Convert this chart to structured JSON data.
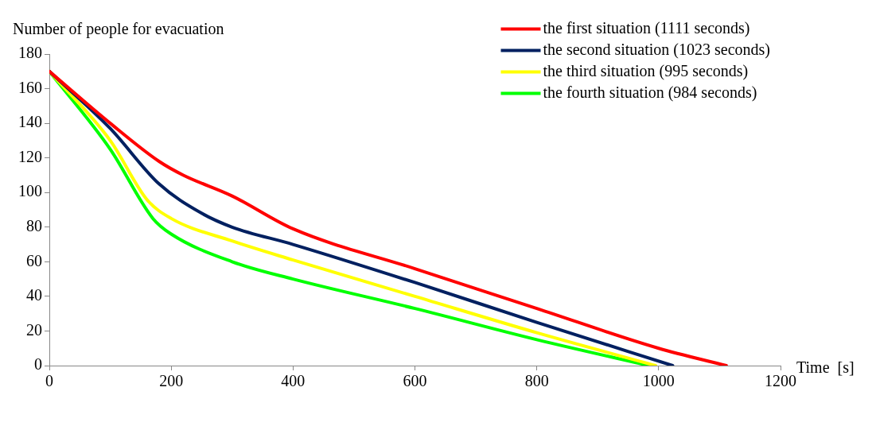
{
  "chart_data": {
    "type": "line",
    "ylabel": "Number of people for evacuation",
    "xlabel": "Time  [s]",
    "xlim": [
      0,
      1200
    ],
    "xticks": [
      0,
      200,
      400,
      600,
      800,
      1000,
      1200
    ],
    "ylim": [
      0,
      180
    ],
    "yticks": [
      0,
      20,
      40,
      60,
      80,
      100,
      120,
      140,
      160,
      180
    ],
    "grid": false,
    "legend": "top right",
    "marker": "none",
    "line_style": "solid",
    "series": [
      {
        "name": "the first situation (1111 seconds)",
        "color": "#ff0000",
        "x": [
          0,
          100,
          180,
          220,
          300,
          400,
          600,
          800,
          1000,
          1111
        ],
        "values": [
          170,
          140,
          118,
          110,
          98,
          79,
          56,
          33,
          10,
          0
        ]
      },
      {
        "name": "the second situation (1023 seconds)",
        "color": "#002060",
        "x": [
          0,
          100,
          180,
          250,
          300,
          400,
          600,
          800,
          1023
        ],
        "values": [
          170,
          137,
          105,
          88,
          80,
          70,
          48,
          25,
          0
        ]
      },
      {
        "name": "the third situation (995 seconds)",
        "color": "#ffff00",
        "x": [
          0,
          100,
          160,
          200,
          300,
          400,
          600,
          800,
          995
        ],
        "values": [
          170,
          130,
          96,
          85,
          72,
          61,
          40,
          19,
          0
        ]
      },
      {
        "name": "the fourth situation (984 seconds)",
        "color": "#00ff00",
        "x": [
          0,
          100,
          170,
          200,
          300,
          400,
          600,
          800,
          984
        ],
        "values": [
          170,
          125,
          85,
          76,
          60,
          50,
          33,
          15,
          0
        ]
      }
    ]
  }
}
